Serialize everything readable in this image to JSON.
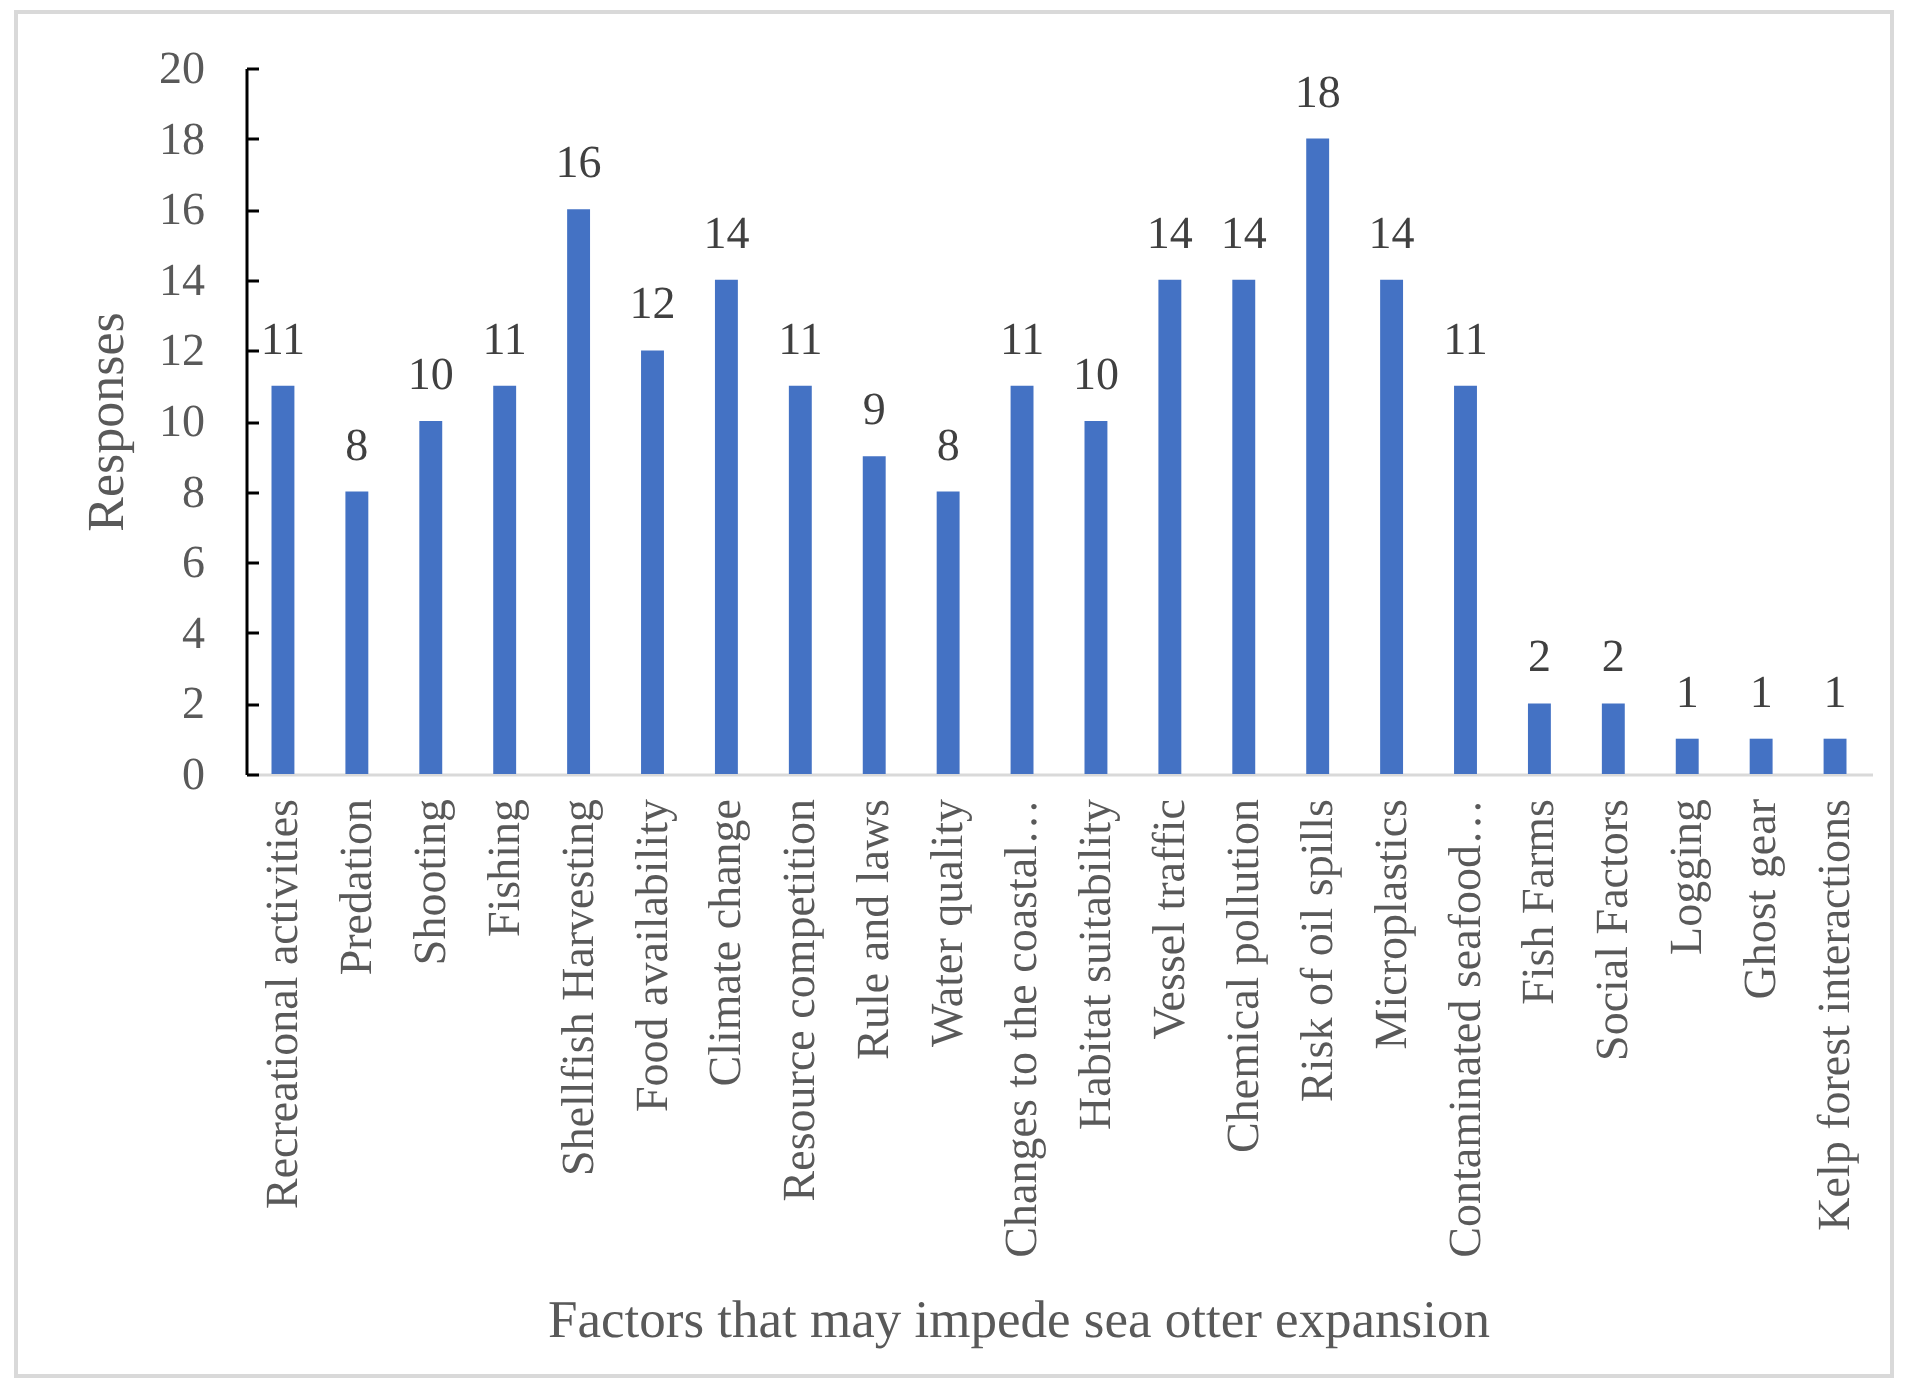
{
  "chart_data": {
    "type": "bar",
    "xlabel": "Factors that may impede sea otter expansion",
    "ylabel": "Responses",
    "categories": [
      "Recreational activities",
      "Predation",
      "Shooting",
      "Fishing",
      "Shellfish Harvesting",
      "Food availability",
      "Climate change",
      "Resource competition",
      "Rule and laws",
      "Water quality",
      "Changes to the coastal…",
      "Habitat suitability",
      "Vessel traffic",
      "Chemical pollution",
      "Risk of oil spills",
      "Microplastics",
      "Contaminated seafood…",
      "Fish Farms",
      "Social Factors",
      "Logging",
      "Ghost gear",
      "Kelp forest interactions"
    ],
    "values": [
      11,
      8,
      10,
      11,
      16,
      12,
      14,
      11,
      9,
      8,
      11,
      10,
      14,
      14,
      18,
      14,
      11,
      2,
      2,
      1,
      1,
      1
    ],
    "color": "#4472c4",
    "ylim": [
      0,
      20
    ],
    "yticks": [
      0,
      2,
      4,
      6,
      8,
      10,
      12,
      14,
      16,
      18,
      20
    ],
    "data_labels": true,
    "grid": false
  }
}
